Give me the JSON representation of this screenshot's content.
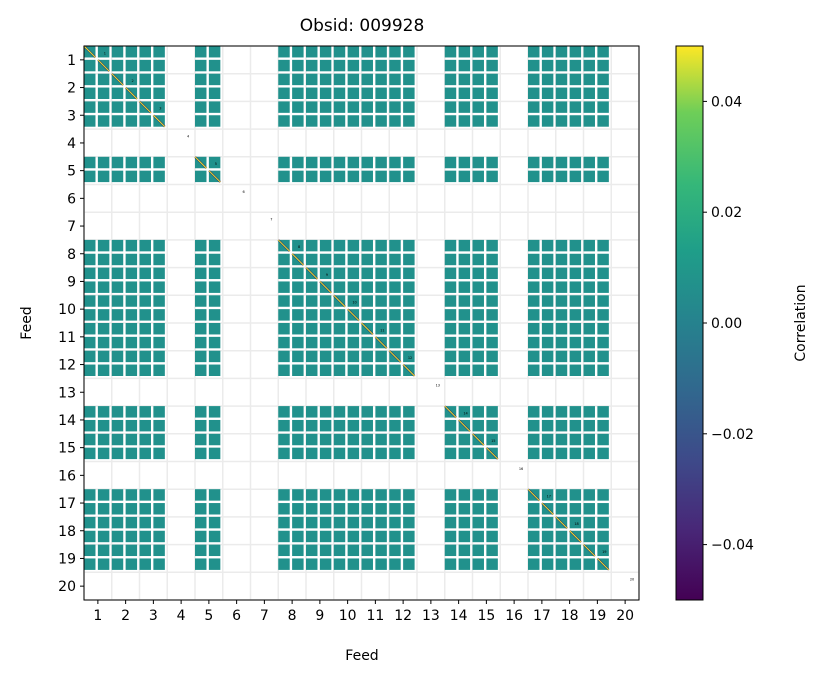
{
  "chart_data": {
    "type": "heatmap",
    "title": "Obsid: 009928",
    "xlabel": "Feed",
    "ylabel": "Feed",
    "x_ticks": [
      "1",
      "2",
      "3",
      "4",
      "5",
      "6",
      "7",
      "8",
      "9",
      "10",
      "11",
      "12",
      "13",
      "14",
      "15",
      "16",
      "17",
      "18",
      "19",
      "20"
    ],
    "y_ticks": [
      "1",
      "2",
      "3",
      "4",
      "5",
      "6",
      "7",
      "8",
      "9",
      "10",
      "11",
      "12",
      "13",
      "14",
      "15",
      "16",
      "17",
      "18",
      "19",
      "20"
    ],
    "feeds_with_data": [
      1,
      2,
      3,
      5,
      8,
      9,
      10,
      11,
      12,
      14,
      15,
      17,
      18,
      19
    ],
    "feeds_without_data": [
      4,
      6,
      7,
      13,
      16,
      20
    ],
    "subbands_per_feed": 2,
    "off_diagonal_value": 0.0,
    "diagonal_value": 1.0,
    "grid": true,
    "colorbar": {
      "label": "Correlation",
      "colormap": "viridis",
      "range": [
        -0.05,
        0.05
      ],
      "ticks": [
        0.04,
        0.02,
        0.0,
        -0.02,
        -0.04
      ],
      "tick_labels": [
        "0.04",
        "0.02",
        "0.00",
        "−0.02",
        "−0.04"
      ]
    },
    "colors": {
      "zero": "#21918c",
      "high": "#fde725",
      "low": "#440154",
      "grid": "#ebebeb"
    }
  }
}
